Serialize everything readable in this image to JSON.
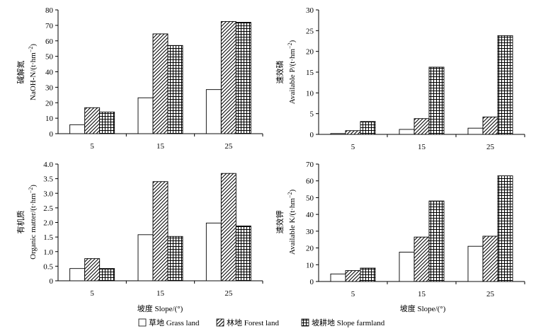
{
  "figure": {
    "xlabel": "坡度 Slope/(°)",
    "legend": [
      {
        "key": "grass",
        "label": "草地 Grass land",
        "pattern": "blank"
      },
      {
        "key": "forest",
        "label": "林地 Forest land",
        "pattern": "diagonal"
      },
      {
        "key": "farm",
        "label": "坡耕地 Slope farmland",
        "pattern": "grid"
      }
    ]
  },
  "chart_data": [
    {
      "id": "nitrogen",
      "type": "bar",
      "title": "",
      "ylabel_cn": "碱解氮",
      "ylabel_en": "NaOH-N/(t·hm",
      "ylabel_sup": "−2",
      "categories": [
        "5",
        "15",
        "25"
      ],
      "ylim": [
        0,
        80
      ],
      "yticks": [
        0,
        10,
        20,
        30,
        40,
        50,
        60,
        70,
        80
      ],
      "series": [
        {
          "name": "草地 Grass land",
          "values": [
            5.8,
            23.2,
            28.5
          ]
        },
        {
          "name": "林地 Forest land",
          "values": [
            16.8,
            64.5,
            72.5
          ]
        },
        {
          "name": "坡耕地 Slope farmland",
          "values": [
            14.0,
            57.0,
            72.0
          ]
        }
      ]
    },
    {
      "id": "phosphorus",
      "type": "bar",
      "title": "",
      "ylabel_cn": "速效磷",
      "ylabel_en": "Available P/(t·hm",
      "ylabel_sup": "−2",
      "categories": [
        "5",
        "15",
        "25"
      ],
      "ylim": [
        0,
        30
      ],
      "yticks": [
        0,
        5,
        10,
        15,
        20,
        25,
        30
      ],
      "series": [
        {
          "name": "草地 Grass land",
          "values": [
            0.2,
            1.2,
            1.5
          ]
        },
        {
          "name": "林地 Forest land",
          "values": [
            0.9,
            3.8,
            4.2
          ]
        },
        {
          "name": "坡耕地 Slope farmland",
          "values": [
            3.1,
            16.2,
            23.8
          ]
        }
      ]
    },
    {
      "id": "organic",
      "type": "bar",
      "title": "",
      "ylabel_cn": "有机质",
      "ylabel_en": "Organic matter/(t·hm",
      "ylabel_sup": "−2",
      "categories": [
        "5",
        "15",
        "25"
      ],
      "ylim": [
        0,
        4.0
      ],
      "yticks": [
        "0",
        "0.5",
        "1.0",
        "1.5",
        "2.0",
        "2.5",
        "3.0",
        "3.5",
        "4.0"
      ],
      "series": [
        {
          "name": "草地 Grass land",
          "values": [
            0.42,
            1.58,
            1.98
          ]
        },
        {
          "name": "林地 Forest land",
          "values": [
            0.76,
            3.4,
            3.68
          ]
        },
        {
          "name": "坡耕地 Slope farmland",
          "values": [
            0.42,
            1.52,
            1.88
          ]
        }
      ]
    },
    {
      "id": "potassium",
      "type": "bar",
      "title": "",
      "ylabel_cn": "速效钾",
      "ylabel_en": "Available K/(t·hm",
      "ylabel_sup": "−2",
      "categories": [
        "5",
        "15",
        "25"
      ],
      "ylim": [
        0,
        70
      ],
      "yticks": [
        0,
        10,
        20,
        30,
        40,
        50,
        60,
        70
      ],
      "series": [
        {
          "name": "草地 Grass land",
          "values": [
            4.5,
            17.5,
            21.0
          ]
        },
        {
          "name": "林地 Forest land",
          "values": [
            6.5,
            26.5,
            27.0
          ]
        },
        {
          "name": "坡耕地 Slope farmland",
          "values": [
            8.0,
            48.0,
            63.0
          ]
        }
      ]
    }
  ]
}
